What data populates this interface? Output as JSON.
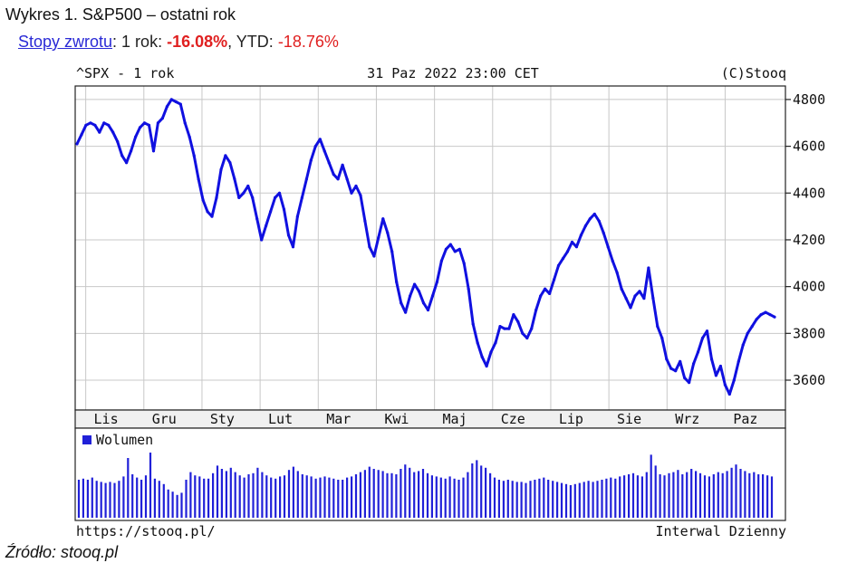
{
  "header": {
    "title": "Wykres 1. S&P500 – ostatni rok",
    "returns_link": "Stopy zwrotu",
    "label_1y": ": 1 rok: ",
    "value_1y": "-16.08%",
    "label_ytd": ", YTD: ",
    "value_ytd": "-18.76%"
  },
  "chart_header": {
    "ticker": "^SPX - 1 rok",
    "date": "31 Paz 2022 23:00 CET",
    "copyright": "(C)Stooq"
  },
  "chart_footer": {
    "url": "https://stooq.pl/",
    "interval": "Interwal Dzienny"
  },
  "source": "Źródło: stooq.pl",
  "colors": {
    "price": "#1010e0",
    "volume": "#2020d8",
    "grid": "#c8c8c8"
  },
  "chart_data": {
    "type": "line",
    "y_ticks": [
      3600,
      3800,
      4000,
      4200,
      4400,
      4600,
      4800
    ],
    "ylim": [
      3480,
      4850
    ],
    "x_tick_labels": [
      "Lis",
      "Gru",
      "Sty",
      "Lut",
      "Mar",
      "Kwi",
      "Maj",
      "Cze",
      "Lip",
      "Sie",
      "Wrz",
      "Paz"
    ],
    "series": [
      {
        "values": [
          4610,
          4650,
          4690,
          4700,
          4690,
          4660,
          4700,
          4690,
          4660,
          4620,
          4560,
          4530,
          4580,
          4640,
          4680,
          4700,
          4690,
          4580,
          4700,
          4720,
          4770,
          4800,
          4790,
          4780,
          4700,
          4640,
          4560,
          4460,
          4370,
          4320,
          4300,
          4380,
          4500,
          4560,
          4530,
          4460,
          4380,
          4400,
          4430,
          4380,
          4290,
          4200,
          4260,
          4320,
          4380,
          4400,
          4330,
          4220,
          4170,
          4300,
          4380,
          4460,
          4540,
          4600,
          4630,
          4580,
          4530,
          4480,
          4460,
          4520,
          4460,
          4400,
          4430,
          4390,
          4280,
          4170,
          4130,
          4210,
          4290,
          4230,
          4150,
          4020,
          3930,
          3890,
          3960,
          4010,
          3980,
          3930,
          3900,
          3960,
          4020,
          4110,
          4160,
          4180,
          4150,
          4160,
          4100,
          3990,
          3840,
          3760,
          3700,
          3660,
          3720,
          3760,
          3830,
          3820,
          3820,
          3880,
          3850,
          3800,
          3780,
          3820,
          3900,
          3960,
          3990,
          3970,
          4030,
          4090,
          4120,
          4150,
          4190,
          4170,
          4220,
          4260,
          4290,
          4310,
          4280,
          4230,
          4170,
          4110,
          4060,
          3990,
          3950,
          3910,
          3960,
          3980,
          3950,
          4080,
          3950,
          3830,
          3780,
          3690,
          3650,
          3640,
          3680,
          3610,
          3590,
          3670,
          3720,
          3780,
          3810,
          3690,
          3620,
          3660,
          3580,
          3540,
          3600,
          3680,
          3750,
          3800,
          3830,
          3860,
          3880,
          3890,
          3880,
          3870
        ]
      }
    ],
    "volume": {
      "label": "Wolumen",
      "values": [
        3.5,
        3.6,
        3.5,
        3.7,
        3.4,
        3.3,
        3.2,
        3.3,
        3.2,
        3.4,
        3.8,
        5.5,
        4.0,
        3.7,
        3.5,
        3.9,
        6.0,
        3.6,
        3.4,
        3.1,
        2.6,
        2.4,
        2.1,
        2.3,
        3.5,
        4.2,
        3.9,
        3.8,
        3.6,
        3.6,
        4.1,
        4.8,
        4.5,
        4.3,
        4.6,
        4.2,
        3.9,
        3.7,
        4.0,
        4.1,
        4.6,
        4.2,
        3.9,
        3.7,
        3.6,
        3.8,
        3.9,
        4.4,
        4.7,
        4.3,
        4.0,
        3.9,
        3.8,
        3.6,
        3.7,
        3.8,
        3.7,
        3.6,
        3.5,
        3.5,
        3.7,
        3.8,
        4.0,
        4.2,
        4.4,
        4.7,
        4.5,
        4.4,
        4.3,
        4.1,
        4.1,
        4.0,
        4.5,
        4.9,
        4.6,
        4.2,
        4.3,
        4.5,
        4.1,
        3.9,
        3.8,
        3.7,
        3.6,
        3.8,
        3.6,
        3.5,
        3.7,
        4.2,
        5.0,
        5.3,
        4.8,
        4.6,
        4.1,
        3.7,
        3.5,
        3.4,
        3.5,
        3.4,
        3.3,
        3.3,
        3.2,
        3.4,
        3.5,
        3.6,
        3.7,
        3.5,
        3.4,
        3.3,
        3.2,
        3.1,
        3.0,
        3.1,
        3.2,
        3.3,
        3.4,
        3.3,
        3.4,
        3.5,
        3.6,
        3.7,
        3.6,
        3.8,
        3.9,
        4.0,
        4.1,
        3.9,
        3.8,
        4.2,
        5.8,
        4.8,
        4.0,
        3.9,
        4.1,
        4.2,
        4.4,
        4.0,
        4.2,
        4.5,
        4.3,
        4.1,
        3.9,
        3.8,
        4.0,
        4.2,
        4.1,
        4.3,
        4.6,
        4.9,
        4.5,
        4.3,
        4.1,
        4.2,
        4.0,
        4.0,
        3.9,
        3.8
      ]
    }
  }
}
